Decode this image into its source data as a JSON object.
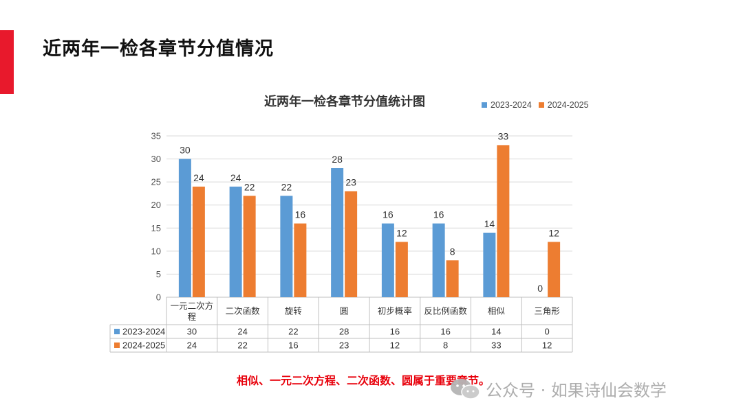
{
  "page_title": "近两年一检各章节分值情况",
  "footer_note": "相似、一元二次方程、二次函数、圆属于重要章节。",
  "watermark": "公众号 · 如果诗仙会数学",
  "colors": {
    "accent": "#e8192c",
    "series_a": "#5b9bd5",
    "series_b": "#ed7d31",
    "note": "#e8000b"
  },
  "chart_data": {
    "type": "bar",
    "title": "近两年一检各章节分值统计图",
    "categories": [
      "一元二次方程",
      "二次函数",
      "旋转",
      "圆",
      "初步概率",
      "反比例函数",
      "相似",
      "三角形"
    ],
    "category_lines": [
      [
        "一元二次方",
        "程"
      ],
      [
        "二次函数"
      ],
      [
        "旋转"
      ],
      [
        "圆"
      ],
      [
        "初步概率"
      ],
      [
        "反比例函数"
      ],
      [
        "相似"
      ],
      [
        "三角形"
      ]
    ],
    "series": [
      {
        "name": "2023-2024",
        "values": [
          30,
          24,
          22,
          28,
          16,
          16,
          14,
          0
        ]
      },
      {
        "name": "2024-2025",
        "values": [
          24,
          22,
          16,
          23,
          12,
          8,
          33,
          12
        ]
      }
    ],
    "yticks": [
      0,
      5,
      10,
      15,
      20,
      25,
      30,
      35
    ],
    "ylim": [
      0,
      35
    ],
    "legend_position": "top-right",
    "grid": true,
    "data_table": true
  }
}
